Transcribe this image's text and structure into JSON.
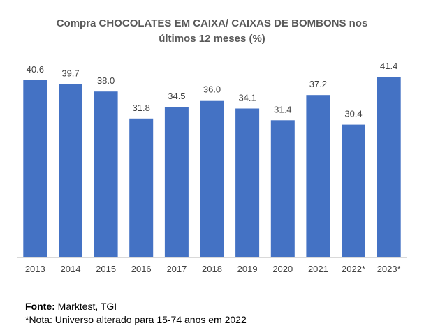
{
  "chart_data": {
    "type": "bar",
    "title_line1": "Compra CHOCOLATES EM CAIXA/ CAIXAS DE BOMBONS nos",
    "title_line2": "últimos 12 meses (%)",
    "categories": [
      "2013",
      "2014",
      "2015",
      "2016",
      "2017",
      "2018",
      "2019",
      "2020",
      "2021",
      "2022*",
      "2023*"
    ],
    "values": [
      40.6,
      39.7,
      38.0,
      31.8,
      34.5,
      36.0,
      34.1,
      31.4,
      37.2,
      30.4,
      41.4
    ],
    "value_labels": [
      "40.6",
      "39.7",
      "38.0",
      "31.8",
      "34.5",
      "36.0",
      "34.1",
      "31.4",
      "37.2",
      "30.4",
      "41.4"
    ],
    "ylim": [
      0,
      41.4
    ],
    "bar_color": "#4472C4",
    "axis_color": "#D9D9D9",
    "grid": false,
    "legend": "none"
  },
  "footer": {
    "source_label": "Fonte:",
    "source_value": " Marktest, TGI",
    "note": "*Nota: Universo alterado para 15-74 anos em 2022"
  }
}
